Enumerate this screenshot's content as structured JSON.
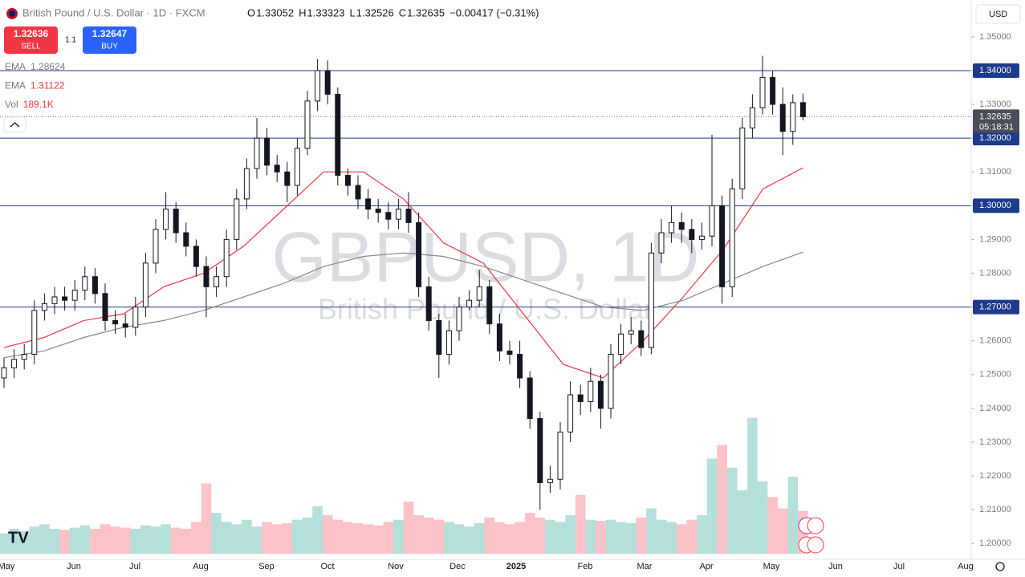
{
  "header": {
    "symbol": "British Pound / U.S. Dollar · 1D · FXCM",
    "ohlc": [
      {
        "k": "O",
        "v": "1.33052"
      },
      {
        "k": "H",
        "v": "1.33323"
      },
      {
        "k": "L",
        "v": "1.32526"
      },
      {
        "k": "C",
        "v": "1.32635"
      }
    ],
    "change": "−0.00417 (−0.31%)"
  },
  "trade": {
    "sell_price": "1.32636",
    "sell": "SELL",
    "spread": "1.1",
    "buy_price": "1.32647",
    "buy": "BUY"
  },
  "indicators": [
    {
      "name": "EMA",
      "value": "1.28624"
    },
    {
      "name": "EMA",
      "value": "1.31122"
    },
    {
      "name": "Vol",
      "value": "189.1K"
    }
  ],
  "currency": "USD",
  "chart_data": {
    "type": "candlestick",
    "watermark": "GBPUSD, 1D",
    "watermark_subtitle": "British Pound / U.S. Dollar",
    "x_labels": [
      "May",
      "Jun",
      "Jul",
      "Aug",
      "Sep",
      "Oct",
      "Nov",
      "Dec",
      "2025",
      "Feb",
      "Mar",
      "Apr",
      "May",
      "Jun",
      "Jul",
      "Aug"
    ],
    "up_color": "#089981",
    "down_color": "#f23645",
    "ylim": [
      1.1953,
      1.3609
    ],
    "yticks": [
      {
        "value": 1.2,
        "label": "1.20000"
      },
      {
        "value": 1.21,
        "label": "1.21000"
      },
      {
        "value": 1.22,
        "label": "1.22000"
      },
      {
        "value": 1.23,
        "label": "1.23000"
      },
      {
        "value": 1.24,
        "label": "1.24000"
      },
      {
        "value": 1.25,
        "label": "1.25000"
      },
      {
        "value": 1.26,
        "label": "1.26000"
      },
      {
        "value": 1.27,
        "label": "1.27000"
      },
      {
        "value": 1.28,
        "label": "1.28000"
      },
      {
        "value": 1.29,
        "label": "1.29000"
      },
      {
        "value": 1.3,
        "label": "1.30000"
      },
      {
        "value": 1.31,
        "label": "1.31000"
      },
      {
        "value": 1.32,
        "label": "1.32000"
      },
      {
        "value": 1.33,
        "label": "1.33000"
      },
      {
        "value": 1.34,
        "label": "1.34000"
      },
      {
        "value": 1.35,
        "label": "1.35000"
      }
    ],
    "levels": [
      {
        "value": 1.34,
        "label": "1.34000"
      },
      {
        "value": 1.32,
        "label": "1.32000"
      },
      {
        "value": 1.3,
        "label": "1.30000"
      },
      {
        "value": 1.27,
        "label": "1.27000"
      }
    ],
    "level_color": "#1e3a8a",
    "last_price": {
      "value": 1.32635,
      "label": "1.32635"
    },
    "countdown": "05:18:31",
    "open": [
      1.249,
      1.252,
      1.2545,
      1.256,
      1.269,
      1.271,
      1.273,
      1.272,
      1.275,
      1.279,
      1.274,
      1.266,
      1.265,
      1.264,
      1.27,
      1.283,
      1.293,
      1.299,
      1.292,
      1.288,
      1.282,
      1.276,
      1.279,
      1.29,
      1.302,
      1.311,
      1.32,
      1.312,
      1.31,
      1.306,
      1.317,
      1.331,
      1.34,
      1.333,
      1.309,
      1.306,
      1.302,
      1.299,
      1.298,
      1.296,
      1.299,
      1.295,
      1.276,
      1.266,
      1.256,
      1.263,
      1.27,
      1.272,
      1.276,
      1.265,
      1.257,
      1.256,
      1.249,
      1.237,
      1.218,
      1.219,
      1.233,
      1.244,
      1.242,
      1.248,
      1.24,
      1.256,
      1.262,
      1.263,
      1.258,
      1.286,
      1.292,
      1.295,
      1.293,
      1.29,
      1.291,
      1.3,
      1.276,
      1.305,
      1.323,
      1.329,
      1.338,
      1.33,
      1.322,
      1.33052
    ],
    "high": [
      1.255,
      1.2575,
      1.259,
      1.272,
      1.274,
      1.276,
      1.276,
      1.278,
      1.282,
      1.2815,
      1.277,
      1.269,
      1.268,
      1.273,
      1.286,
      1.296,
      1.304,
      1.301,
      1.295,
      1.29,
      1.285,
      1.282,
      1.293,
      1.305,
      1.314,
      1.326,
      1.323,
      1.315,
      1.313,
      1.32,
      1.334,
      1.3434,
      1.343,
      1.335,
      1.311,
      1.309,
      1.305,
      1.302,
      1.301,
      1.302,
      1.304,
      1.298,
      1.279,
      1.268,
      1.266,
      1.273,
      1.275,
      1.281,
      1.278,
      1.268,
      1.26,
      1.26,
      1.251,
      1.239,
      1.223,
      1.236,
      1.248,
      1.247,
      1.252,
      1.25,
      1.259,
      1.265,
      1.267,
      1.266,
      1.289,
      1.296,
      1.3,
      1.298,
      1.296,
      1.295,
      1.321,
      1.303,
      1.308,
      1.326,
      1.333,
      1.3444,
      1.34,
      1.335,
      1.333,
      1.33323
    ],
    "low": [
      1.246,
      1.249,
      1.2515,
      1.253,
      1.266,
      1.268,
      1.269,
      1.269,
      1.272,
      1.271,
      1.263,
      1.262,
      1.261,
      1.2615,
      1.267,
      1.28,
      1.29,
      1.289,
      1.285,
      1.279,
      1.267,
      1.273,
      1.276,
      1.287,
      1.299,
      1.308,
      1.309,
      1.307,
      1.301,
      1.303,
      1.315,
      1.328,
      1.33,
      1.306,
      1.303,
      1.299,
      1.296,
      1.295,
      1.293,
      1.293,
      1.292,
      1.273,
      1.263,
      1.249,
      1.253,
      1.26,
      1.269,
      1.27,
      1.262,
      1.254,
      1.253,
      1.246,
      1.234,
      1.21,
      1.215,
      1.216,
      1.23,
      1.238,
      1.239,
      1.234,
      1.237,
      1.253,
      1.259,
      1.2555,
      1.256,
      1.283,
      1.289,
      1.289,
      1.286,
      1.287,
      1.288,
      1.271,
      1.273,
      1.302,
      1.32,
      1.327,
      1.327,
      1.315,
      1.318,
      1.32526
    ],
    "close": [
      1.252,
      1.2545,
      1.256,
      1.269,
      1.271,
      1.273,
      1.272,
      1.275,
      1.279,
      1.274,
      1.266,
      1.265,
      1.264,
      1.27,
      1.283,
      1.293,
      1.299,
      1.292,
      1.288,
      1.282,
      1.276,
      1.279,
      1.29,
      1.302,
      1.311,
      1.32,
      1.312,
      1.31,
      1.306,
      1.317,
      1.331,
      1.34,
      1.333,
      1.309,
      1.306,
      1.302,
      1.299,
      1.298,
      1.296,
      1.299,
      1.295,
      1.276,
      1.266,
      1.256,
      1.263,
      1.27,
      1.272,
      1.276,
      1.265,
      1.257,
      1.256,
      1.249,
      1.237,
      1.218,
      1.219,
      1.233,
      1.244,
      1.242,
      1.248,
      1.24,
      1.256,
      1.262,
      1.263,
      1.258,
      1.286,
      1.292,
      1.295,
      1.293,
      1.29,
      1.291,
      1.3,
      1.276,
      1.305,
      1.323,
      1.329,
      1.338,
      1.33,
      1.322,
      1.3305,
      1.32635
    ],
    "volume": [
      90,
      110,
      100,
      120,
      130,
      110,
      105,
      115,
      125,
      110,
      130,
      120,
      115,
      110,
      125,
      120,
      130,
      115,
      110,
      140,
      310,
      180,
      140,
      130,
      150,
      120,
      140,
      130,
      135,
      150,
      160,
      210,
      170,
      150,
      140,
      135,
      130,
      125,
      140,
      150,
      230,
      170,
      160,
      150,
      140,
      130,
      120,
      135,
      160,
      140,
      130,
      140,
      180,
      160,
      150,
      140,
      170,
      260,
      150,
      145,
      150,
      140,
      135,
      160,
      200,
      150,
      140,
      130,
      150,
      170,
      420,
      480,
      380,
      280,
      600,
      320,
      250,
      200,
      340,
      189.1
    ],
    "volume_lim": [
      0,
      620
    ],
    "lines": [
      {
        "color": "#f23645",
        "values": [
          1.258,
          1.261,
          1.266,
          1.268,
          1.276,
          1.28,
          1.288,
          1.299,
          1.31,
          1.31,
          1.302,
          1.289,
          1.283,
          1.268,
          1.253,
          1.249,
          1.26,
          1.273,
          1.287,
          1.305,
          1.3112
        ]
      },
      {
        "color": "#888888",
        "values": [
          1.255,
          1.257,
          1.261,
          1.264,
          1.266,
          1.269,
          1.273,
          1.277,
          1.282,
          1.285,
          1.286,
          1.285,
          1.282,
          1.278,
          1.274,
          1.27,
          1.269,
          1.272,
          1.277,
          1.282,
          1.28624
        ]
      }
    ]
  }
}
